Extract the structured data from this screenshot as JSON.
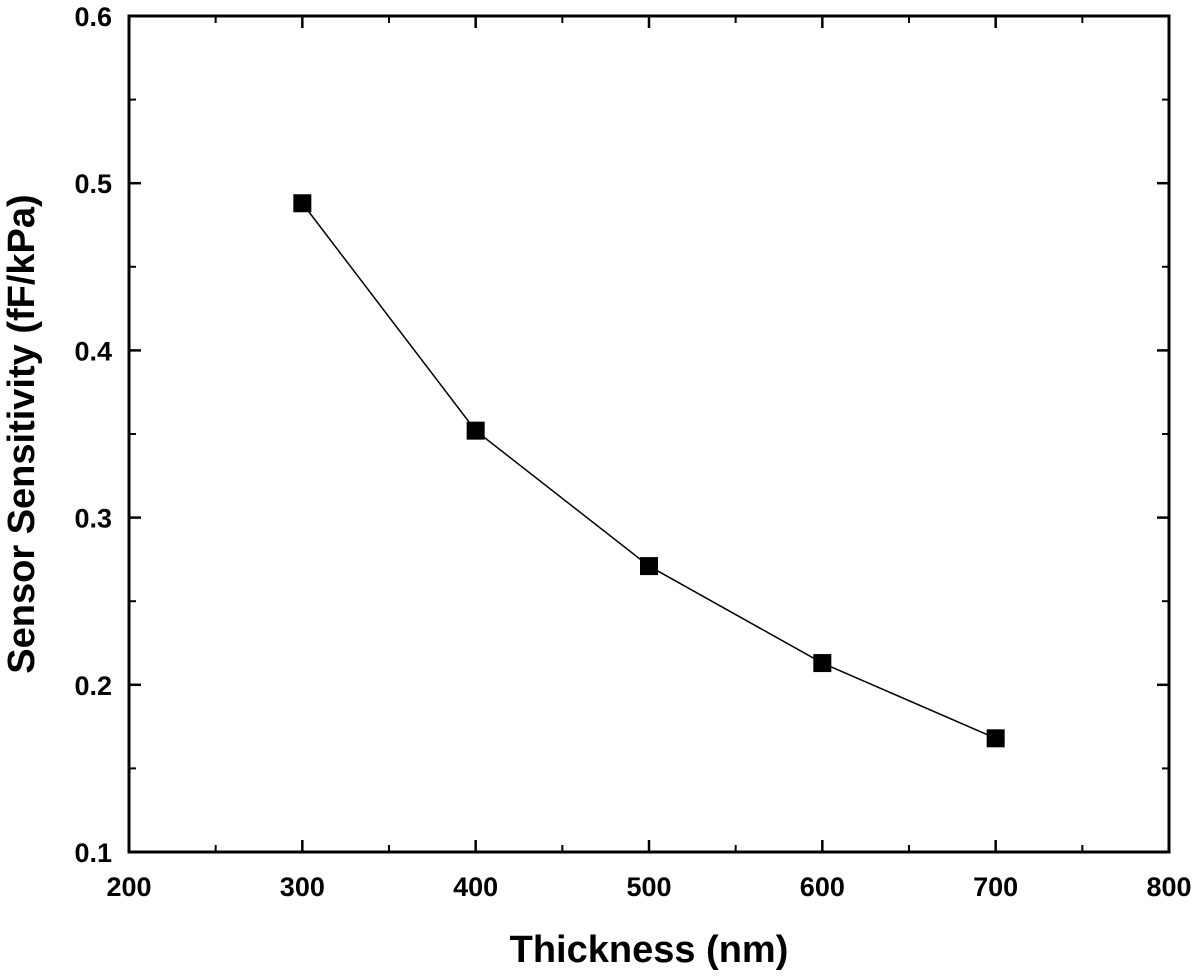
{
  "chart_data": {
    "type": "line",
    "title": "",
    "xlabel": "Thickness (nm)",
    "ylabel": "Sensor Sensitivity (fF/kPa)",
    "xlim": [
      200,
      800
    ],
    "ylim": [
      0.1,
      0.6
    ],
    "x_ticks": [
      200,
      300,
      400,
      500,
      600,
      700,
      800
    ],
    "y_ticks": [
      0.1,
      0.2,
      0.3,
      0.4,
      0.5,
      0.6
    ],
    "x_tick_labels": [
      "200",
      "300",
      "400",
      "500",
      "600",
      "700",
      "800"
    ],
    "y_tick_labels": [
      "0.1",
      "0.2",
      "0.3",
      "0.4",
      "0.5",
      "0.6"
    ],
    "grid": false,
    "legend": "none",
    "marker": "square",
    "series": [
      {
        "x": [
          300,
          400,
          500,
          600,
          700
        ],
        "y": [
          0.488,
          0.352,
          0.271,
          0.213,
          0.168
        ],
        "color": "#000000"
      }
    ]
  }
}
